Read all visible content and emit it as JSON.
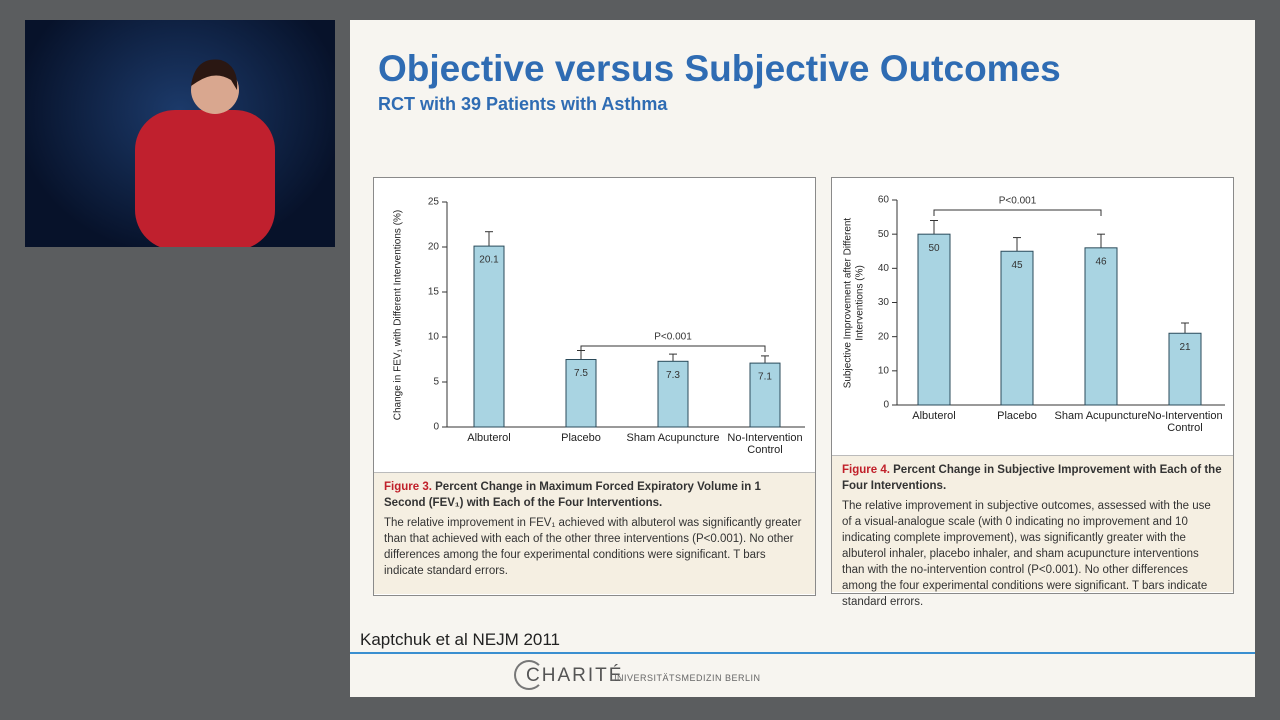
{
  "slide": {
    "title": "Objective versus Subjective Outcomes",
    "subtitle": "RCT with 39 Patients with Asthma",
    "citation": "Kaptchuk et al NEJM 2011",
    "logo": "CHARITÉ",
    "logo_sub": "UNIVERSITÄTSMEDIZIN BERLIN"
  },
  "chart_data": [
    {
      "type": "bar",
      "y_label": "Change in FEV₁ with Different Interventions (%)",
      "categories": [
        "Albuterol",
        "Placebo",
        "Sham Acupuncture",
        "No-Intervention Control"
      ],
      "values": [
        20.1,
        7.5,
        7.3,
        7.1
      ],
      "errors": [
        1.6,
        1.0,
        0.8,
        0.8
      ],
      "color": "#a9d4e2",
      "ylim": [
        0,
        25
      ],
      "yticks": [
        0,
        5,
        10,
        15,
        20,
        25
      ],
      "annotation": "P<0.001",
      "caption_label": "Figure 3.",
      "caption_title": "Percent Change in Maximum Forced Expiratory Volume in 1 Second (FEV₁) with Each of the Four Interventions.",
      "caption_text": "The relative improvement in FEV₁ achieved with albuterol was significantly greater than that achieved with each of the other three interventions (P<0.001). No other differences among the four experimental conditions were significant. T bars indicate standard errors."
    },
    {
      "type": "bar",
      "y_label": "Subjective Improvement after Different Interventions (%)",
      "categories": [
        "Albuterol",
        "Placebo",
        "Sham Acupuncture",
        "No-Intervention Control"
      ],
      "values": [
        50,
        45,
        46,
        21
      ],
      "errors": [
        4,
        4,
        4,
        3
      ],
      "color": "#a9d4e2",
      "ylim": [
        0,
        60
      ],
      "yticks": [
        0,
        10,
        20,
        30,
        40,
        50,
        60
      ],
      "annotation": "P<0.001",
      "caption_label": "Figure 4.",
      "caption_title": "Percent Change in Subjective Improvement with Each of the Four Interventions.",
      "caption_text": "The relative improvement in subjective outcomes, assessed with the use of a visual-analogue scale (with 0 indicating no improvement and 10 indicating complete improvement), was significantly greater with the albuterol inhaler, placebo inhaler, and sham acupuncture interventions than with the no-intervention control (P<0.001). No other differences among the four experimental conditions were significant. T bars indicate standard errors."
    }
  ]
}
